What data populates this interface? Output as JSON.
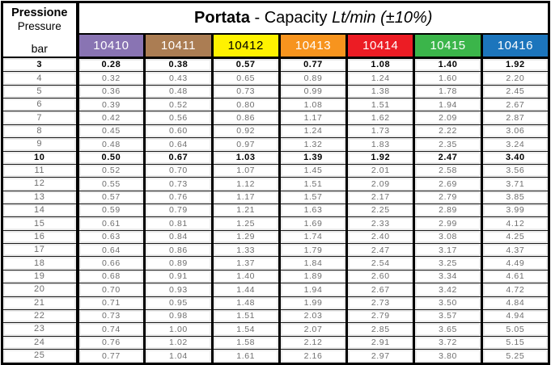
{
  "chart_data": {
    "type": "table",
    "title_parts": {
      "bold": "Portata",
      "normal": " - Capacity ",
      "italic": "Lt/min (±10%)"
    },
    "row_header": {
      "label_it": "Pressione",
      "label_en": "Pressure",
      "unit": "bar"
    },
    "columns": [
      {
        "code": "10410",
        "color": "#8974B3",
        "text_color": "#ffffff"
      },
      {
        "code": "10411",
        "color": "#AB7D53",
        "text_color": "#ffffff"
      },
      {
        "code": "10412",
        "color": "#FFF200",
        "text_color": "#000000"
      },
      {
        "code": "10413",
        "color": "#F7941E",
        "text_color": "#ffffff"
      },
      {
        "code": "10414",
        "color": "#EC1C24",
        "text_color": "#ffffff"
      },
      {
        "code": "10415",
        "color": "#3BB54A",
        "text_color": "#ffffff"
      },
      {
        "code": "10416",
        "color": "#1C75BC",
        "text_color": "#ffffff"
      }
    ],
    "pressure_unit": "bar",
    "rows": [
      {
        "bar": "3",
        "bold": true,
        "values": [
          "0.28",
          "0.38",
          "0.57",
          "0.77",
          "1.08",
          "1.40",
          "1.92"
        ]
      },
      {
        "bar": "4",
        "bold": false,
        "values": [
          "0.32",
          "0.43",
          "0.65",
          "0.89",
          "1.24",
          "1.60",
          "2.20"
        ]
      },
      {
        "bar": "5",
        "bold": false,
        "values": [
          "0.36",
          "0.48",
          "0.73",
          "0.99",
          "1.38",
          "1.78",
          "2.45"
        ]
      },
      {
        "bar": "6",
        "bold": false,
        "values": [
          "0.39",
          "0.52",
          "0.80",
          "1.08",
          "1.51",
          "1.94",
          "2.67"
        ]
      },
      {
        "bar": "7",
        "bold": false,
        "values": [
          "0.42",
          "0.56",
          "0.86",
          "1.17",
          "1.62",
          "2.09",
          "2.87"
        ]
      },
      {
        "bar": "8",
        "bold": false,
        "values": [
          "0.45",
          "0.60",
          "0.92",
          "1.24",
          "1.73",
          "2.22",
          "3.06"
        ]
      },
      {
        "bar": "9",
        "bold": false,
        "values": [
          "0.48",
          "0.64",
          "0.97",
          "1.32",
          "1.83",
          "2.35",
          "3.24"
        ]
      },
      {
        "bar": "10",
        "bold": true,
        "values": [
          "0.50",
          "0.67",
          "1.03",
          "1.39",
          "1.92",
          "2.47",
          "3.40"
        ]
      },
      {
        "bar": "11",
        "bold": false,
        "values": [
          "0.52",
          "0.70",
          "1.07",
          "1.45",
          "2.01",
          "2.58",
          "3.56"
        ]
      },
      {
        "bar": "12",
        "bold": false,
        "values": [
          "0.55",
          "0.73",
          "1.12",
          "1.51",
          "2.09",
          "2.69",
          "3.71"
        ]
      },
      {
        "bar": "13",
        "bold": false,
        "values": [
          "0.57",
          "0.76",
          "1.17",
          "1.57",
          "2.17",
          "2.79",
          "3.85"
        ]
      },
      {
        "bar": "14",
        "bold": false,
        "values": [
          "0.59",
          "0.79",
          "1.21",
          "1.63",
          "2.25",
          "2.89",
          "3.99"
        ]
      },
      {
        "bar": "15",
        "bold": false,
        "values": [
          "0.61",
          "0.81",
          "1.25",
          "1.69",
          "2.33",
          "2.99",
          "4.12"
        ]
      },
      {
        "bar": "16",
        "bold": false,
        "values": [
          "0.63",
          "0.84",
          "1.29",
          "1.74",
          "2.40",
          "3.08",
          "4.25"
        ]
      },
      {
        "bar": "17",
        "bold": false,
        "values": [
          "0.64",
          "0.86",
          "1.33",
          "1.79",
          "2.47",
          "3.17",
          "4.37"
        ]
      },
      {
        "bar": "18",
        "bold": false,
        "values": [
          "0.66",
          "0.89",
          "1.37",
          "1.84",
          "2.54",
          "3.25",
          "4.49"
        ]
      },
      {
        "bar": "19",
        "bold": false,
        "values": [
          "0.68",
          "0.91",
          "1.40",
          "1.89",
          "2.60",
          "3.34",
          "4.61"
        ]
      },
      {
        "bar": "20",
        "bold": false,
        "values": [
          "0.70",
          "0.93",
          "1.44",
          "1.94",
          "2.67",
          "3.42",
          "4.72"
        ]
      },
      {
        "bar": "21",
        "bold": false,
        "values": [
          "0.71",
          "0.95",
          "1.48",
          "1.99",
          "2.73",
          "3.50",
          "4.84"
        ]
      },
      {
        "bar": "22",
        "bold": false,
        "values": [
          "0.73",
          "0.98",
          "1.51",
          "2.03",
          "2.79",
          "3.57",
          "4.94"
        ]
      },
      {
        "bar": "23",
        "bold": false,
        "values": [
          "0.74",
          "1.00",
          "1.54",
          "2.07",
          "2.85",
          "3.65",
          "5.05"
        ]
      },
      {
        "bar": "24",
        "bold": false,
        "values": [
          "0.76",
          "1.02",
          "1.58",
          "2.12",
          "2.91",
          "3.72",
          "5.15"
        ]
      },
      {
        "bar": "25",
        "bold": false,
        "values": [
          "0.77",
          "1.04",
          "1.61",
          "2.16",
          "2.97",
          "3.80",
          "5.25"
        ]
      }
    ]
  }
}
